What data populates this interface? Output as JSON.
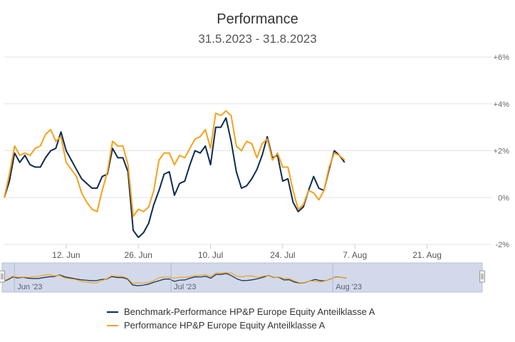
{
  "chart_data": {
    "type": "line",
    "title": "Performance",
    "subtitle": "31.5.2023 - 31.8.2023",
    "ylim": [
      -2,
      6
    ],
    "yticks": [
      "+6%",
      "+4%",
      "+2%",
      "0%",
      "-2%"
    ],
    "ytick_values": [
      6,
      4,
      2,
      0,
      -2
    ],
    "x_range": [
      0,
      92
    ],
    "xticks": [
      {
        "label": "12. Jun",
        "x": 12
      },
      {
        "label": "26. Jun",
        "x": 26
      },
      {
        "label": "10. Jul",
        "x": 40
      },
      {
        "label": "24. Jul",
        "x": 54
      },
      {
        "label": "7. Aug",
        "x": 68
      },
      {
        "label": "21. Aug",
        "x": 82
      }
    ],
    "navigator_labels": [
      {
        "label": "Jun '23",
        "x": 1
      },
      {
        "label": "Jul '23",
        "x": 31
      },
      {
        "label": "Aug '23",
        "x": 62
      }
    ],
    "series": [
      {
        "name": "Benchmark-Performance HP&P Europe Equity Anteilklasse A",
        "color": "#0d2a52",
        "points": [
          [
            0,
            0
          ],
          [
            1,
            0.7
          ],
          [
            2,
            1.9
          ],
          [
            3,
            1.5
          ],
          [
            4,
            1.8
          ],
          [
            5,
            1.4
          ],
          [
            6,
            1.3
          ],
          [
            7,
            1.3
          ],
          [
            8,
            1.7
          ],
          [
            9,
            2.0
          ],
          [
            10,
            2.1
          ],
          [
            11,
            2.8
          ],
          [
            12,
            2.0
          ],
          [
            13,
            1.6
          ],
          [
            14,
            1.2
          ],
          [
            15,
            0.8
          ],
          [
            16,
            0.6
          ],
          [
            17,
            0.4
          ],
          [
            18,
            0.4
          ],
          [
            19,
            0.9
          ],
          [
            20,
            1.0
          ],
          [
            21,
            2.1
          ],
          [
            22,
            1.7
          ],
          [
            23,
            1.7
          ],
          [
            24,
            1.1
          ],
          [
            25,
            -1.4
          ],
          [
            26,
            -1.7
          ],
          [
            27,
            -1.5
          ],
          [
            28,
            -1.1
          ],
          [
            29,
            -0.3
          ],
          [
            30,
            0.3
          ],
          [
            31,
            1.0
          ],
          [
            32,
            1.1
          ],
          [
            33,
            0.1
          ],
          [
            34,
            0.6
          ],
          [
            35,
            0.7
          ],
          [
            36,
            1.4
          ],
          [
            37,
            2.0
          ],
          [
            38,
            1.9
          ],
          [
            39,
            2.2
          ],
          [
            40,
            1.4
          ],
          [
            41,
            3.0
          ],
          [
            42,
            3.0
          ],
          [
            43,
            3.4
          ],
          [
            44,
            2.4
          ],
          [
            45,
            1.1
          ],
          [
            46,
            0.4
          ],
          [
            47,
            0.5
          ],
          [
            48,
            0.8
          ],
          [
            49,
            1.2
          ],
          [
            50,
            1.8
          ],
          [
            51,
            2.6
          ],
          [
            52,
            1.7
          ],
          [
            53,
            1.8
          ],
          [
            54,
            0.7
          ],
          [
            55,
            0.8
          ],
          [
            56,
            -0.2
          ],
          [
            57,
            -0.6
          ],
          [
            58,
            -0.4
          ],
          [
            59,
            0.3
          ],
          [
            60,
            0.9
          ],
          [
            61,
            0.4
          ],
          [
            62,
            0.3
          ],
          [
            63,
            1.2
          ],
          [
            64,
            2.0
          ],
          [
            65,
            1.8
          ],
          [
            66,
            1.5
          ]
        ]
      },
      {
        "name": "Performance HP&P Europe Equity Anteilklasse A",
        "color": "#f5a11a",
        "points": [
          [
            0,
            0
          ],
          [
            1,
            1.0
          ],
          [
            2,
            2.2
          ],
          [
            3,
            1.8
          ],
          [
            4,
            1.9
          ],
          [
            5,
            1.8
          ],
          [
            6,
            2.1
          ],
          [
            7,
            2.2
          ],
          [
            8,
            2.7
          ],
          [
            9,
            2.9
          ],
          [
            10,
            2.4
          ],
          [
            11,
            2.6
          ],
          [
            12,
            1.5
          ],
          [
            13,
            1.2
          ],
          [
            14,
            0.9
          ],
          [
            15,
            0.2
          ],
          [
            16,
            -0.2
          ],
          [
            17,
            -0.5
          ],
          [
            18,
            -0.6
          ],
          [
            19,
            0.3
          ],
          [
            20,
            1.1
          ],
          [
            21,
            2.4
          ],
          [
            22,
            2.2
          ],
          [
            23,
            2.2
          ],
          [
            24,
            1.4
          ],
          [
            25,
            -0.8
          ],
          [
            26,
            -0.5
          ],
          [
            27,
            -0.6
          ],
          [
            28,
            -0.4
          ],
          [
            29,
            0.3
          ],
          [
            30,
            1.6
          ],
          [
            31,
            1.9
          ],
          [
            32,
            1.9
          ],
          [
            33,
            1.4
          ],
          [
            34,
            1.8
          ],
          [
            35,
            1.7
          ],
          [
            36,
            2.1
          ],
          [
            37,
            2.5
          ],
          [
            38,
            2.6
          ],
          [
            39,
            2.9
          ],
          [
            40,
            2.1
          ],
          [
            41,
            3.6
          ],
          [
            42,
            3.5
          ],
          [
            43,
            3.7
          ],
          [
            44,
            3.5
          ],
          [
            45,
            2.2
          ],
          [
            46,
            2.0
          ],
          [
            47,
            2.4
          ],
          [
            48,
            2.3
          ],
          [
            49,
            1.7
          ],
          [
            50,
            2.3
          ],
          [
            51,
            2.5
          ],
          [
            52,
            1.6
          ],
          [
            53,
            1.9
          ],
          [
            54,
            1.3
          ],
          [
            55,
            1.3
          ],
          [
            56,
            0.3
          ],
          [
            57,
            -0.5
          ],
          [
            58,
            -0.3
          ],
          [
            59,
            0.3
          ],
          [
            60,
            0.2
          ],
          [
            61,
            -0.1
          ],
          [
            62,
            0.3
          ],
          [
            63,
            1.3
          ],
          [
            64,
            1.9
          ],
          [
            65,
            1.8
          ],
          [
            66,
            1.6
          ]
        ]
      }
    ]
  }
}
